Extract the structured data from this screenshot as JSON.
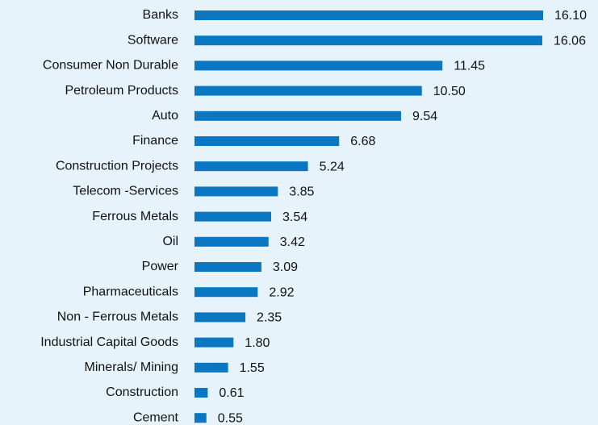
{
  "chart_data": {
    "type": "hbar",
    "categories": [
      "Banks",
      "Software",
      "Consumer Non Durable",
      "Petroleum Products",
      "Auto",
      "Finance",
      "Construction Projects",
      "Telecom -Services",
      "Ferrous Metals",
      "Oil",
      "Power",
      "Pharmaceuticals",
      "Non - Ferrous Metals",
      "Industrial Capital Goods",
      "Minerals/ Mining",
      "Construction",
      "Cement"
    ],
    "values": [
      16.1,
      16.06,
      11.45,
      10.5,
      9.54,
      6.68,
      5.24,
      3.85,
      3.54,
      3.42,
      3.09,
      2.92,
      2.35,
      1.8,
      1.55,
      0.61,
      0.55
    ],
    "value_labels": [
      "16.10",
      "16.06",
      "11.45",
      "10.50",
      "9.54",
      "6.68",
      "5.24",
      "3.85",
      "3.54",
      "3.42",
      "3.09",
      "2.92",
      "2.35",
      "1.80",
      "1.55",
      "0.61",
      "0.55"
    ],
    "color": "#0a77c2"
  }
}
